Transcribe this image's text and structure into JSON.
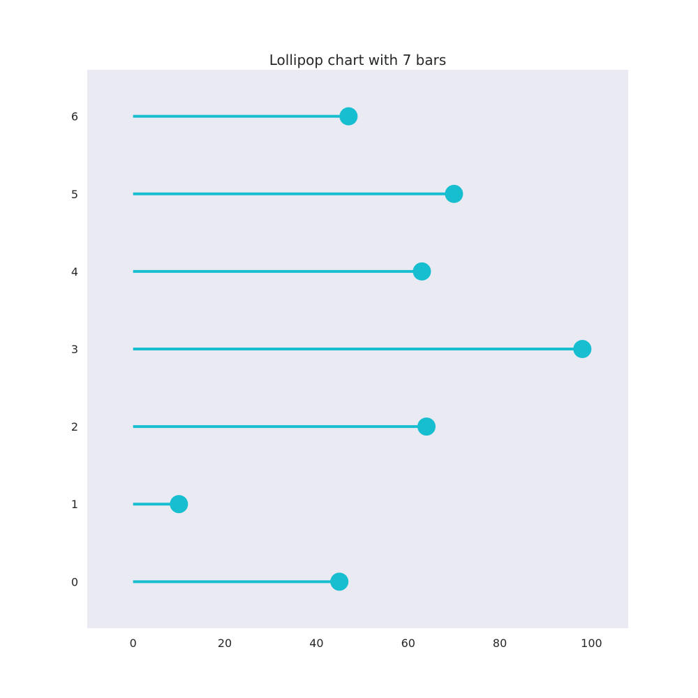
{
  "chart_data": {
    "type": "lollipop",
    "orientation": "horizontal",
    "title": "Lollipop chart with 7 bars",
    "xlabel": "",
    "ylabel": "",
    "categories": [
      "0",
      "1",
      "2",
      "3",
      "4",
      "5",
      "6"
    ],
    "values": [
      45,
      10,
      64,
      98,
      63,
      70,
      47
    ],
    "xlim": [
      -10,
      108
    ],
    "ylim": [
      -0.6,
      6.6
    ],
    "xticks": [
      0,
      20,
      40,
      60,
      80,
      100
    ],
    "grid": false,
    "legend": "none",
    "colors": {
      "marker": "#17becf",
      "plot_background": "#eaeaf2",
      "text": "#262626"
    }
  }
}
